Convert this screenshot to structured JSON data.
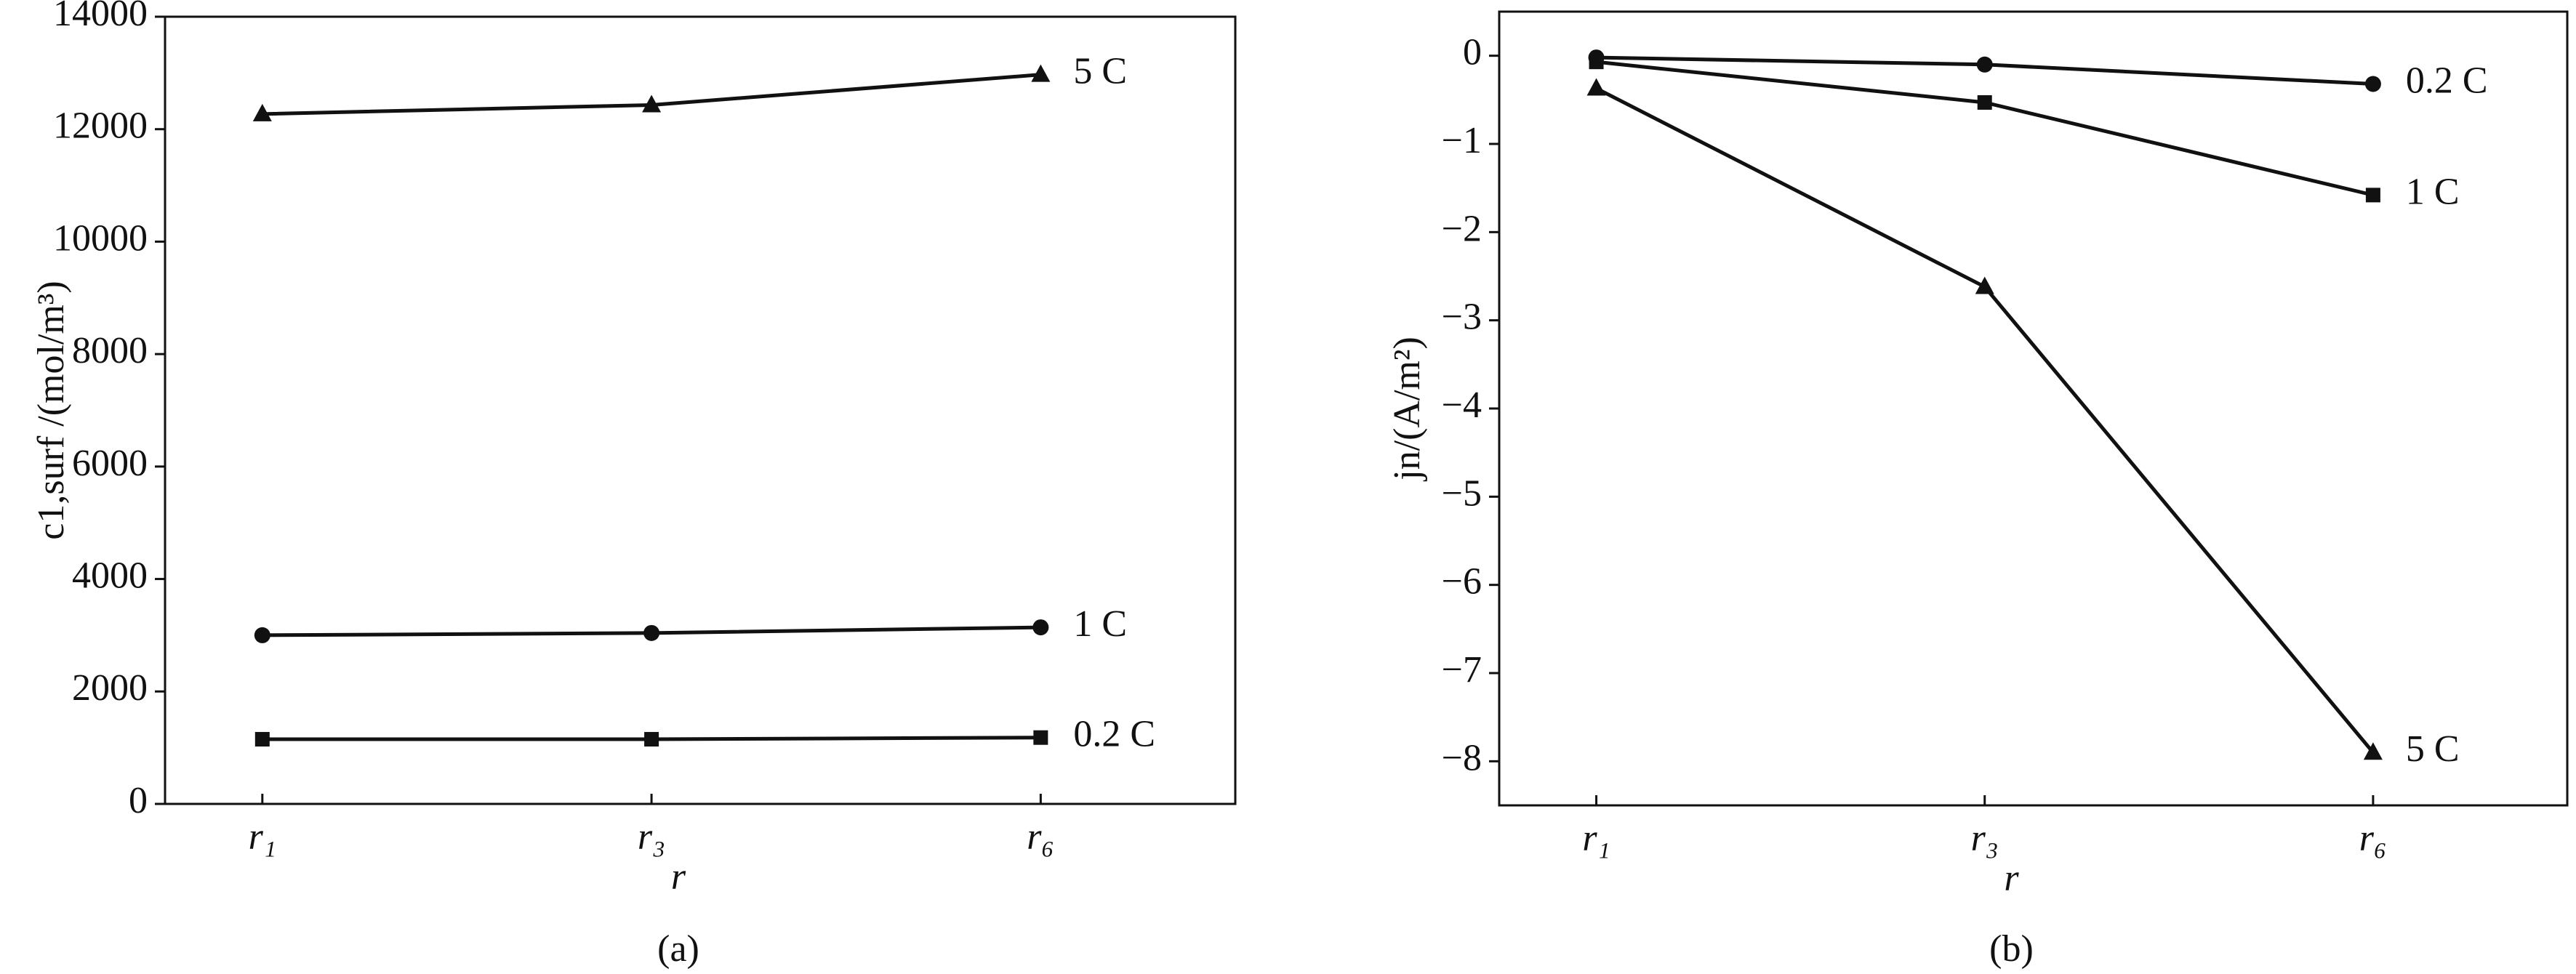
{
  "chart_data": [
    {
      "type": "line",
      "caption": "(a)",
      "x_label": "r",
      "y_label": "c1,surf /(mol/m³)",
      "categories": [
        "r₁",
        "r₃",
        "r₆"
      ],
      "ylim": [
        0,
        14000
      ],
      "yticks": [
        0,
        2000,
        4000,
        6000,
        8000,
        10000,
        12000,
        14000
      ],
      "series": [
        {
          "name": "5 C",
          "color": "#111111",
          "marker": "triangle",
          "values": [
            12270,
            12430,
            12970
          ]
        },
        {
          "name": "1 C",
          "color": "#111111",
          "marker": "circle",
          "values": [
            3000,
            3040,
            3140
          ]
        },
        {
          "name": "0.2 C",
          "color": "#111111",
          "marker": "square",
          "values": [
            1150,
            1150,
            1180
          ]
        }
      ]
    },
    {
      "type": "line",
      "caption": "(b)",
      "x_label": "r",
      "y_label": "jn/(A/m²)",
      "categories": [
        "r₁",
        "r₃",
        "r₆"
      ],
      "ylim": [
        -8.5,
        0.5
      ],
      "yticks": [
        0,
        {
          "value": -1,
          "label": "−1"
        },
        {
          "value": -2,
          "label": "−2"
        },
        {
          "value": -3,
          "label": "−3"
        },
        {
          "value": -4,
          "label": "−4"
        },
        {
          "value": -5,
          "label": "−5"
        },
        {
          "value": -6,
          "label": "−6"
        },
        {
          "value": -7,
          "label": "−7"
        },
        {
          "value": -8,
          "label": "−8"
        }
      ],
      "series": [
        {
          "name": "0.2 C",
          "color": "#111111",
          "marker": "circle",
          "values": [
            -0.02,
            -0.1,
            -0.32
          ]
        },
        {
          "name": "1 C",
          "color": "#111111",
          "marker": "square",
          "values": [
            -0.07,
            -0.53,
            -1.58
          ]
        },
        {
          "name": "5 C",
          "color": "#111111",
          "marker": "triangle",
          "values": [
            -0.37,
            -2.62,
            -7.9
          ]
        }
      ]
    }
  ]
}
